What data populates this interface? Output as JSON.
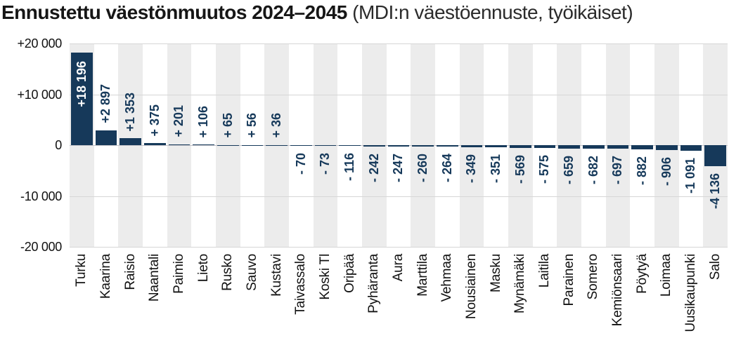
{
  "title": "Ennustettu väestönmuutos 2024–2045",
  "subtitle": "(MDI:n väestöennuste, työikäiset)",
  "chart_data": {
    "type": "bar",
    "orientation": "vertical",
    "title": "Ennustettu väestönmuutos 2024–2045",
    "subtitle": "(MDI:n väestöennuste, työikäiset)",
    "categories": [
      "Turku",
      "Kaarina",
      "Raisio",
      "Naantali",
      "Paimio",
      "Lieto",
      "Rusko",
      "Sauvo",
      "Kustavi",
      "Taivassalo",
      "Koski Tl",
      "Oripää",
      "Pyhäranta",
      "Aura",
      "Marttila",
      "Vehmaa",
      "Nousiainen",
      "Masku",
      "Mynämäki",
      "Laitila",
      "Parainen",
      "Somero",
      "Kemiönsaari",
      "Pöytyä",
      "Loimaa",
      "Uusikaupunki",
      "Salo"
    ],
    "values": [
      18196,
      2897,
      1353,
      375,
      201,
      106,
      65,
      56,
      36,
      -70,
      -73,
      -116,
      -242,
      -247,
      -260,
      -264,
      -349,
      -351,
      -569,
      -575,
      -659,
      -682,
      -697,
      -882,
      -906,
      -1091,
      -4136
    ],
    "value_labels": [
      "+18 196",
      "+2 897",
      "+1 353",
      "+ 375",
      "+ 201",
      "+ 106",
      "+ 65",
      "+ 56",
      "+ 36",
      "- 70",
      "- 73",
      "- 116",
      "- 242",
      "- 247",
      "- 260",
      "- 264",
      "- 349",
      "- 351",
      "- 569",
      "- 575",
      "- 659",
      "- 682",
      "- 697",
      "- 882",
      "- 906",
      "-1 091",
      "-4 136"
    ],
    "xlabel": "",
    "ylabel": "",
    "ylim": [
      -20000,
      20000
    ],
    "yticks": [
      20000,
      10000,
      0,
      -10000,
      -20000
    ],
    "ytick_labels": [
      "+20 000",
      "+10 000",
      "0",
      "-10 000",
      "-20 000"
    ],
    "grid": "horizontal-only",
    "legend": "none",
    "colors": {
      "bar": "#16395A",
      "value_label": "#16395A",
      "value_label_inside": "#FFFFFF",
      "column_stripe": "#ECECEC",
      "gridline": "#D6D6D6",
      "zero_line": "#C2C2C8",
      "axis_text": "#111111",
      "title_text": "#161616"
    }
  }
}
